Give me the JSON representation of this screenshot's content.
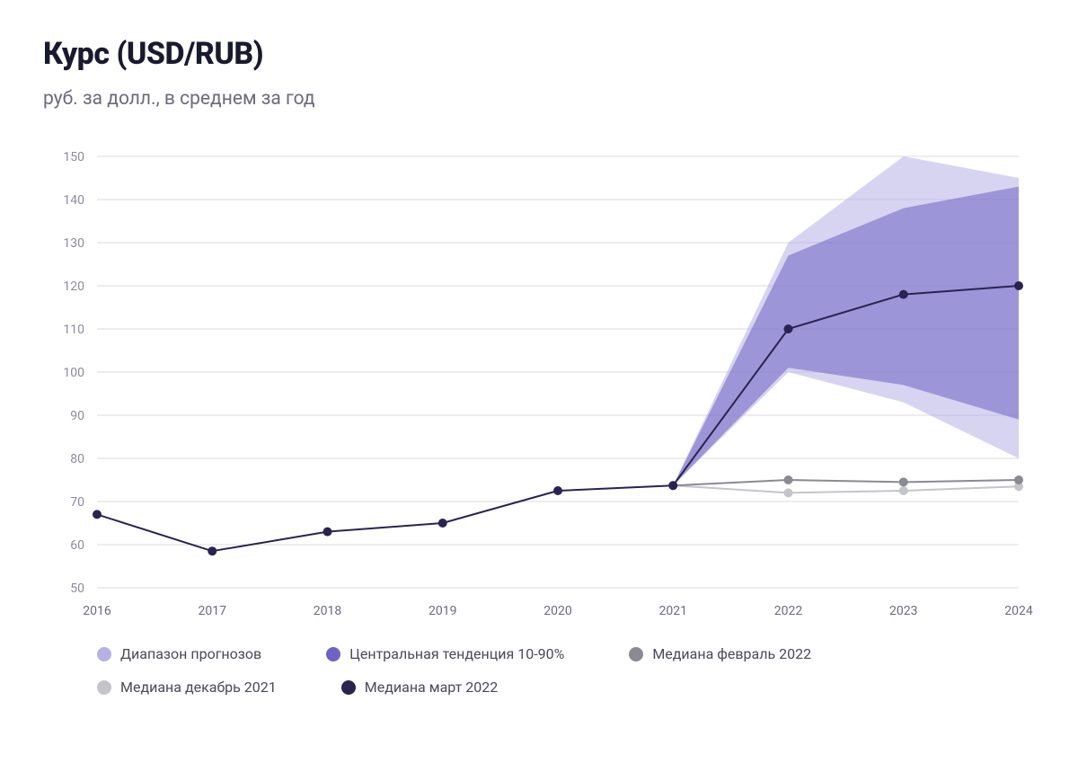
{
  "title": "Курс (USD/RUB)",
  "subtitle": "руб. за долл., в среднем за год",
  "chart": {
    "type": "line+area",
    "background_color": "#ffffff",
    "grid_color": "#dedade",
    "axis_label_color": "#8c8c98",
    "x_categories": [
      "2016",
      "2017",
      "2018",
      "2019",
      "2020",
      "2021",
      "2022",
      "2023",
      "2024"
    ],
    "ylim": [
      50,
      150
    ],
    "ytick_step": 10,
    "yticks": [
      50,
      60,
      70,
      80,
      90,
      100,
      110,
      120,
      130,
      140,
      150
    ],
    "title_fontsize": 34,
    "subtitle_fontsize": 21,
    "axis_fontsize": 14,
    "legend_fontsize": 16,
    "marker_radius": 5,
    "line_width": 2,
    "series": {
      "range_full": {
        "label": "Диапазон прогнозов",
        "type": "area",
        "color": "#b5b0e6",
        "opacity": 0.55,
        "x_start_index": 5,
        "upper": [
          73.7,
          130,
          150,
          145
        ],
        "lower": [
          73.7,
          100,
          93,
          80
        ]
      },
      "range_central": {
        "label": "Центральная тенденция 10-90%",
        "type": "area",
        "color": "#6e63c3",
        "opacity": 0.55,
        "x_start_index": 5,
        "upper": [
          73.7,
          127,
          138,
          143
        ],
        "lower": [
          73.7,
          101,
          97,
          89
        ]
      },
      "median_feb_2022": {
        "label": "Медиана февраль 2022",
        "type": "line",
        "color": "#8a8a93",
        "marker": true,
        "x_start_index": 5,
        "values": [
          73.7,
          75,
          74.5,
          75
        ]
      },
      "median_dec_2021": {
        "label": "Медиана декабрь 2021",
        "type": "line",
        "color": "#c4c4cc",
        "marker": true,
        "x_start_index": 5,
        "values": [
          73.7,
          72,
          72.5,
          73.5
        ]
      },
      "median_mar_2022": {
        "label": "Медиана март 2022",
        "type": "line",
        "color": "#2a2352",
        "marker": true,
        "x_start_index": 0,
        "values": [
          67,
          58.5,
          63,
          65,
          72.5,
          73.7,
          110,
          118,
          120
        ]
      }
    }
  },
  "legend": [
    {
      "key": "range_full",
      "label": "Диапазон прогнозов",
      "color": "#b5b0e6"
    },
    {
      "key": "range_central",
      "label": "Центральная тенденция 10-90%",
      "color": "#6e63c3"
    },
    {
      "key": "median_feb_2022",
      "label": "Медиана февраль 2022",
      "color": "#8a8a93"
    },
    {
      "key": "median_dec_2021",
      "label": "Медиана декабрь 2021",
      "color": "#c4c4cc"
    },
    {
      "key": "median_mar_2022",
      "label": "Медиана март 2022",
      "color": "#2a2352"
    }
  ]
}
